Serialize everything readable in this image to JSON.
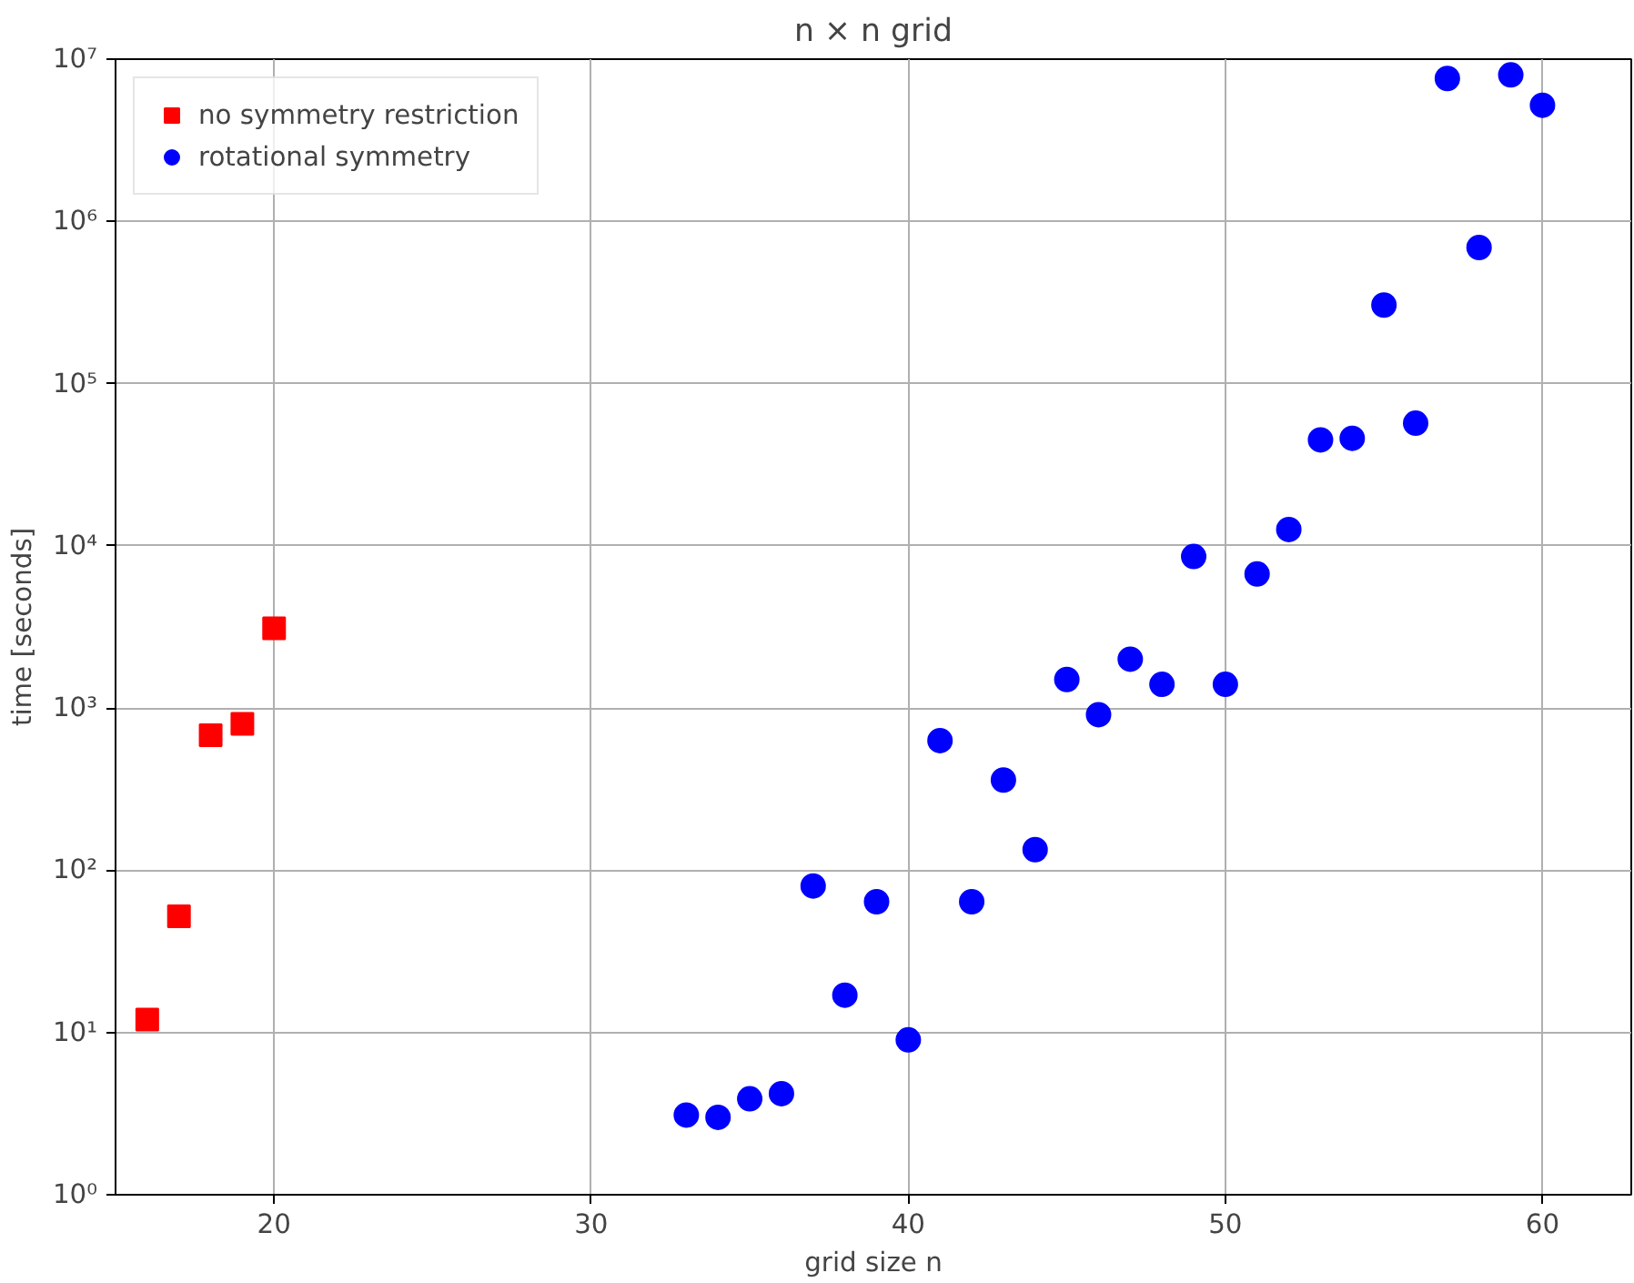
{
  "chart_data": {
    "type": "scatter",
    "title": "n × n grid",
    "xlabel": "grid size n",
    "ylabel": "time [seconds]",
    "log": "y",
    "grid": true,
    "legend": "top left",
    "xlim": [
      15,
      62.8
    ],
    "xticks": [
      20,
      30,
      40,
      50,
      60
    ],
    "ylim": [
      1,
      10000000
    ],
    "yticks": [
      {
        "value": 1,
        "label": "10⁰"
      },
      {
        "value": 10,
        "label": "10¹"
      },
      {
        "value": 100,
        "label": "10²"
      },
      {
        "value": 1000,
        "label": "10³"
      },
      {
        "value": 10000,
        "label": "10⁴"
      },
      {
        "value": 100000,
        "label": "10⁵"
      },
      {
        "value": 1000000,
        "label": "10⁶"
      },
      {
        "value": 10000000,
        "label": "10⁷"
      }
    ],
    "series": [
      {
        "name": "no symmetry restriction",
        "color": "#ff0000",
        "marker": "square",
        "x": [
          16,
          17,
          18,
          19,
          20
        ],
        "values": [
          12,
          52,
          680,
          800,
          3100
        ]
      },
      {
        "name": "rotational symmetry",
        "color": "#0000ff",
        "marker": "circle",
        "x": [
          33,
          34,
          35,
          36,
          37,
          38,
          39,
          40,
          41,
          42,
          43,
          44,
          45,
          46,
          47,
          48,
          49,
          50,
          51,
          52,
          53,
          54,
          55,
          56,
          57,
          58,
          59,
          60
        ],
        "values": [
          3.1,
          3.0,
          3.9,
          4.2,
          80,
          17,
          64,
          9,
          630,
          64,
          360,
          134,
          1500,
          910,
          2000,
          1400,
          8600,
          1400,
          6700,
          12600,
          45000,
          46000,
          305000,
          57000,
          7600000,
          690000,
          8000000,
          5200000
        ]
      }
    ]
  }
}
